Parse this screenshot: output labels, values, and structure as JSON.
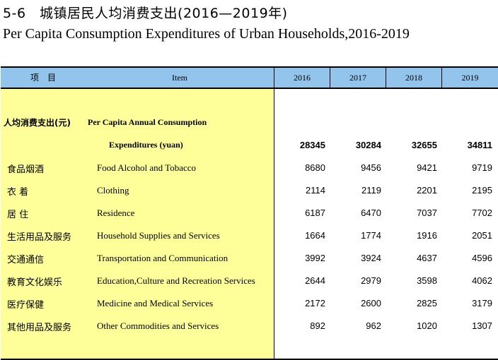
{
  "title": {
    "cn": "5-6　城镇居民人均消费支出(2016—2019年)",
    "en": "Per Capita Consumption Expenditures of Urban Households,2016-2019"
  },
  "header": {
    "item_cn": "项　目",
    "item_en": "Item",
    "years": [
      "2016",
      "2017",
      "2018",
      "2019"
    ]
  },
  "total": {
    "cn": "人均消费支出(元)",
    "en_line1": "Per Capita Annual Consumption",
    "en_line2": "Expenditures (yuan)",
    "values": [
      "28345",
      "30284",
      "32655",
      "34811"
    ]
  },
  "rows": [
    {
      "cn": "食品烟酒",
      "en": "Food Alcohol and Tobacco",
      "values": [
        "8680",
        "9456",
        "9421",
        "9719"
      ]
    },
    {
      "cn": "衣 着",
      "en": "Clothing",
      "values": [
        "2114",
        "2119",
        "2201",
        "2195"
      ]
    },
    {
      "cn": "居 住",
      "en": "Residence",
      "values": [
        "6187",
        "6470",
        "7037",
        "7702"
      ]
    },
    {
      "cn": "生活用品及服务",
      "en": "Household Supplies and Services",
      "values": [
        "1664",
        "1774",
        "1916",
        "2051"
      ]
    },
    {
      "cn": "交通通信",
      "en": "Transportation and Communication",
      "values": [
        "3992",
        "3924",
        "4637",
        "4596"
      ]
    },
    {
      "cn": "教育文化娱乐",
      "en": "Education,Culture and Recreation Services",
      "values": [
        "2644",
        "2979",
        "3598",
        "4062"
      ]
    },
    {
      "cn": "医疗保健",
      "en": "Medicine and Medical Services",
      "values": [
        "2172",
        "2600",
        "2825",
        "3179"
      ]
    },
    {
      "cn": "其他用品及服务",
      "en": "Other Commodities and Services",
      "values": [
        "892",
        "962",
        "1020",
        "1307"
      ]
    }
  ]
}
